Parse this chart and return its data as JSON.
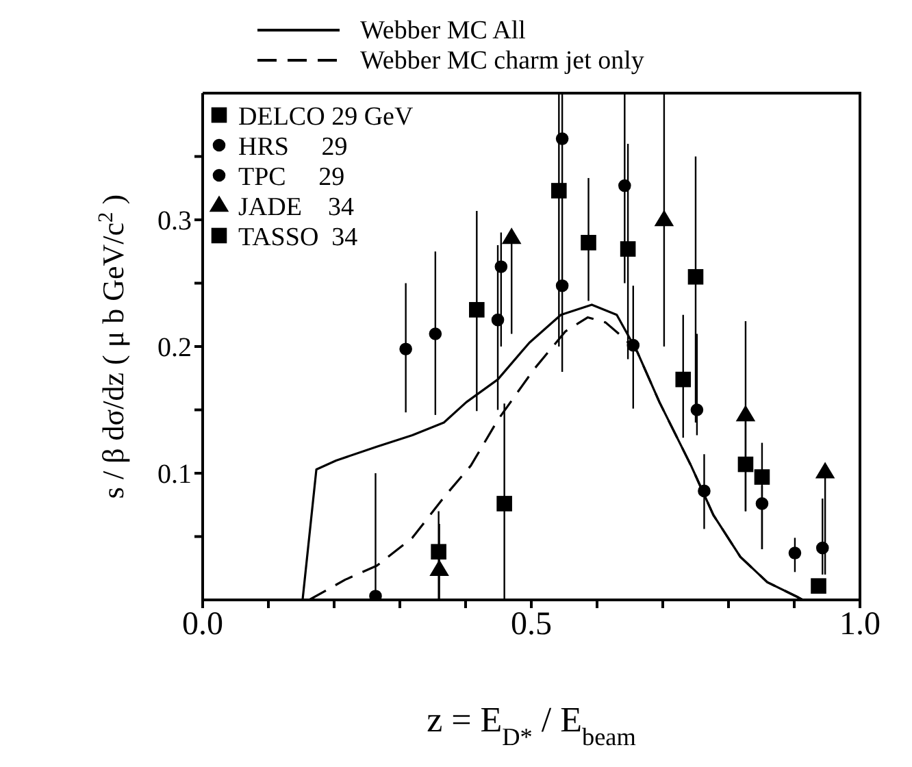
{
  "chart_data": {
    "type": "scatter",
    "xlabel": "z = E$_{D*}$ / E$_{beam}$",
    "ylabel": "s / β dσ/dz ( μ b GeV/c$^{2}$ )",
    "xlim": [
      0,
      1
    ],
    "xticks": [
      {
        "value": 0,
        "label": "0.0"
      },
      {
        "value": 0.1,
        "label": null
      },
      {
        "value": 0.2,
        "label": null
      },
      {
        "value": 0.3,
        "label": null
      },
      {
        "value": 0.4,
        "label": null
      },
      {
        "value": 0.5,
        "label": "0.5"
      },
      {
        "value": 0.6,
        "label": null
      },
      {
        "value": 0.7,
        "label": null
      },
      {
        "value": 0.8,
        "label": null
      },
      {
        "value": 0.9,
        "label": null
      },
      {
        "value": 1,
        "label": "1.0"
      }
    ],
    "ylim": [
      0,
      0.4
    ],
    "yticks": [
      {
        "value": 0.05,
        "label": null
      },
      {
        "value": 0.1,
        "label": "0.1"
      },
      {
        "value": 0.15,
        "label": null
      },
      {
        "value": 0.2,
        "label": "0.2"
      },
      {
        "value": 0.25,
        "label": null
      },
      {
        "value": 0.3,
        "label": "0.3"
      },
      {
        "value": 0.35,
        "label": null
      }
    ],
    "grid": false,
    "legend": "top left",
    "series": [
      {
        "name": "Webber MC  All",
        "type": "line",
        "color": "#000000",
        "line_style": "solid",
        "marker": "none",
        "x": [
          0.152,
          0.173,
          0.203,
          0.265,
          0.319,
          0.367,
          0.401,
          0.449,
          0.497,
          0.545,
          0.592,
          0.63,
          0.661,
          0.695,
          0.743,
          0.777,
          0.818,
          0.859,
          0.906,
          0.913
        ],
        "values": [
          0,
          0.103,
          0.11,
          0.121,
          0.13,
          0.14,
          0.156,
          0.174,
          0.203,
          0.225,
          0.233,
          0.225,
          0.196,
          0.156,
          0.106,
          0.067,
          0.034,
          0.014,
          0.002,
          0
        ]
      },
      {
        "name": "Webber MC  charm jet only",
        "type": "line",
        "color": "#000000",
        "line_style": "dashed",
        "marker": "none",
        "x": [
          0.162,
          0.217,
          0.265,
          0.319,
          0.367,
          0.408,
          0.449,
          0.504,
          0.552,
          0.586,
          0.613,
          0.64,
          0.661,
          0.695,
          0.743,
          0.777,
          0.818,
          0.859,
          0.906,
          0.913
        ],
        "values": [
          0,
          0.016,
          0.027,
          0.049,
          0.081,
          0.106,
          0.142,
          0.182,
          0.212,
          0.223,
          0.219,
          0.207,
          0.196,
          0.156,
          0.106,
          0.067,
          0.034,
          0.014,
          0.002,
          0
        ]
      },
      {
        "name": "DELCO 29 GeV",
        "type": "scatter",
        "color": "#000000",
        "marker": "square",
        "x": [
          0.417,
          0.587,
          0.731,
          0.826,
          0.937
        ],
        "values": [
          0.229,
          0.282,
          0.174,
          0.107,
          0.011
        ],
        "errors": [
          [
            0.149,
            0.307
          ],
          [
            0.236,
            0.333
          ],
          [
            0.128,
            0.225
          ],
          [
            0.07,
            0.145
          ],
          null
        ]
      },
      {
        "name": "HRS     29",
        "type": "scatter",
        "color": "#000000",
        "marker": "circle",
        "x": [
          0.309,
          0.454,
          0.547,
          0.655,
          0.763,
          0.901
        ],
        "values": [
          0.198,
          0.263,
          0.364,
          0.201,
          0.086,
          0.037
        ],
        "errors": [
          [
            0.148,
            0.25
          ],
          [
            0.2,
            0.29
          ],
          [
            0.3,
            0.4
          ],
          [
            0.151,
            0.248
          ],
          [
            0.056,
            0.115
          ],
          [
            0.022,
            0.049
          ]
        ]
      },
      {
        "name": "TPC     29",
        "type": "scatter",
        "color": "#000000",
        "marker": "circle",
        "x": [
          0.263,
          0.354,
          0.449,
          0.547,
          0.642,
          0.752,
          0.851,
          0.943
        ],
        "values": [
          0.003,
          0.21,
          0.221,
          0.248,
          0.327,
          0.15,
          0.076,
          0.041
        ],
        "errors": [
          [
            0,
            0.1
          ],
          [
            0.146,
            0.275
          ],
          [
            0.15,
            0.28
          ],
          [
            0.18,
            0.3
          ],
          [
            0.25,
            0.4
          ],
          [
            0.13,
            0.21
          ],
          [
            0.04,
            0.09
          ],
          [
            0.02,
            0.08
          ]
        ]
      },
      {
        "name": "JADE    34",
        "type": "scatter",
        "color": "#000000",
        "marker": "triangle",
        "x": [
          0.36,
          0.47,
          0.702,
          0.826,
          0.947
        ],
        "values": [
          0.024,
          0.286,
          0.3,
          0.146,
          0.101
        ],
        "errors": [
          [
            0,
            0.06
          ],
          [
            0.21,
            0.29
          ],
          [
            0.2,
            0.4
          ],
          [
            0.07,
            0.22
          ],
          [
            0.02,
            0.1
          ]
        ]
      },
      {
        "name": "TASSO  34",
        "type": "scatter",
        "color": "#000000",
        "marker": "square",
        "x": [
          0.359,
          0.459,
          0.542,
          0.647,
          0.75,
          0.851
        ],
        "values": [
          0.038,
          0.076,
          0.323,
          0.277,
          0.255,
          0.097
        ],
        "errors": [
          [
            0,
            0.07
          ],
          [
            0,
            0.155
          ],
          [
            0.2,
            0.4
          ],
          [
            0.19,
            0.36
          ],
          [
            0.14,
            0.35
          ],
          [
            0.04,
            0.124
          ]
        ]
      }
    ]
  }
}
